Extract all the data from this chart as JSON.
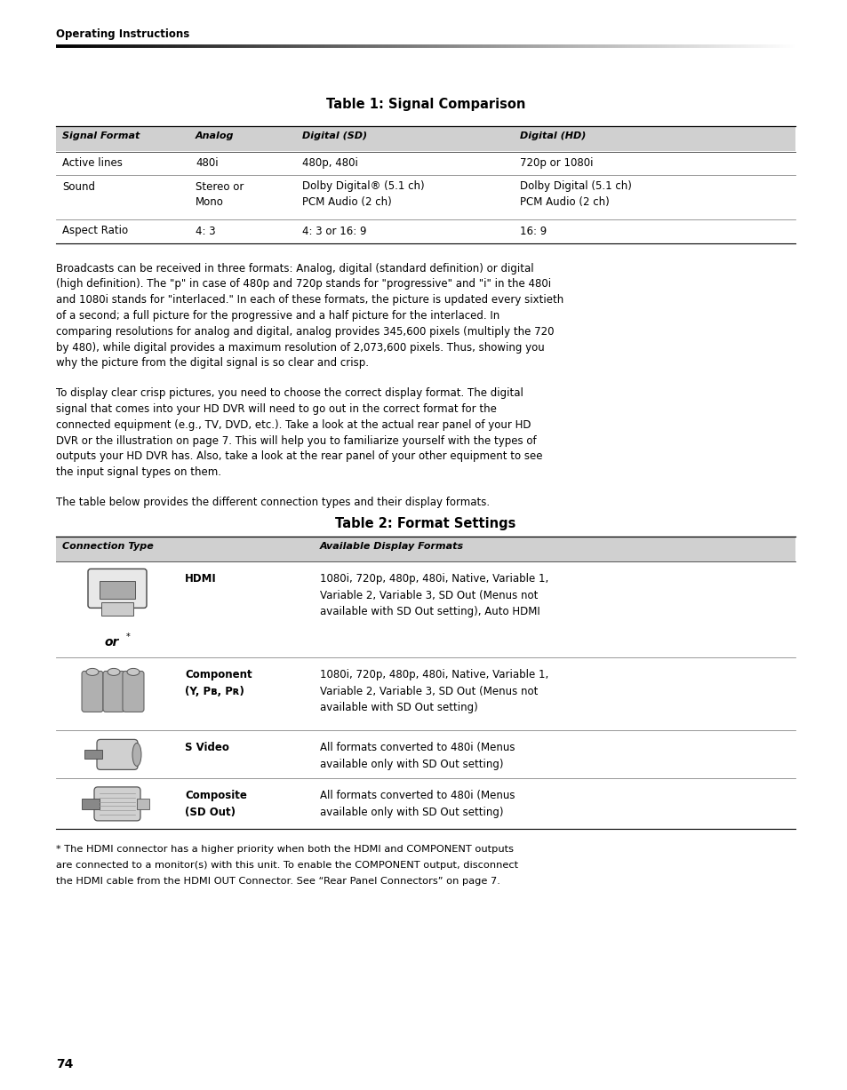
{
  "bg_color": "#ffffff",
  "page_width": 9.54,
  "page_height": 12.27,
  "header_text": "Operating Instructions",
  "table1_title": "Table 1: Signal Comparison",
  "table1_headers": [
    "Signal Format",
    "Analog",
    "Digital (SD)",
    "Digital (HD)"
  ],
  "table1_rows": [
    [
      "Active lines",
      "480i",
      "480p, 480i",
      "720p or 1080i"
    ],
    [
      "Sound",
      "Stereo or\nMono",
      "Dolby Digital® (5.1 ch)\nPCM Audio (2 ch)",
      "Dolby Digital (5.1 ch)\nPCM Audio (2 ch)"
    ],
    [
      "Aspect Ratio",
      "4: 3",
      "4: 3 or 16: 9",
      "16: 9"
    ]
  ],
  "para1": "Broadcasts can be received in three formats: Analog, digital (standard definition) or digital\n(high definition). The \"p\" in case of 480p and 720p stands for \"progressive\" and \"i\" in the 480i\nand 1080i stands for \"interlaced.\" In each of these formats, the picture is updated every sixtieth\nof a second; a full picture for the progressive and a half picture for the interlaced. In\ncomparing resolutions for analog and digital, analog provides 345,600 pixels (multiply the 720\nby 480), while digital provides a maximum resolution of 2,073,600 pixels. Thus, showing you\nwhy the picture from the digital signal is so clear and crisp.",
  "para2": "To display clear crisp pictures, you need to choose the correct display format. The digital\nsignal that comes into your HD DVR will need to go out in the correct format for the\nconnected equipment (e.g., TV, DVD, etc.). Take a look at the actual rear panel of your HD\nDVR or the illustration on page 7. This will help you to familiarize yourself with the types of\noutputs your HD DVR has. Also, take a look at the rear panel of your other equipment to see\nthe input signal types on them.",
  "para3": "The table below provides the different connection types and their display formats.",
  "table2_title": "Table 2: Format Settings",
  "table2_headers": [
    "Connection Type",
    "Available Display Formats"
  ],
  "table2_rows": [
    {
      "connector": "HDMI",
      "formats": "1080i, 720p, 480p, 480i, Native, Variable 1,\nVariable 2, Variable 3, SD Out (Menus not\navailable with SD Out setting), Auto HDMI",
      "has_or": true
    },
    {
      "connector": "Component\n(Y, Pʙ, Pʀ)",
      "formats": "1080i, 720p, 480p, 480i, Native, Variable 1,\nVariable 2, Variable 3, SD Out (Menus not\navailable with SD Out setting)",
      "has_or": false
    },
    {
      "connector": "S Video",
      "formats": "All formats converted to 480i (Menus\navailable only with SD Out setting)",
      "has_or": false
    },
    {
      "connector": "Composite\n(SD Out)",
      "formats": "All formats converted to 480i (Menus\navailable only with SD Out setting)",
      "has_or": false
    }
  ],
  "footnote": "* The HDMI connector has a higher priority when both the HDMI and COMPONENT outputs\nare connected to a monitor(s) with this unit. To enable the COMPONENT output, disconnect\nthe HDMI cable from the HDMI OUT Connector. See “Rear Panel Connectors” on page 7.",
  "page_number": "74"
}
